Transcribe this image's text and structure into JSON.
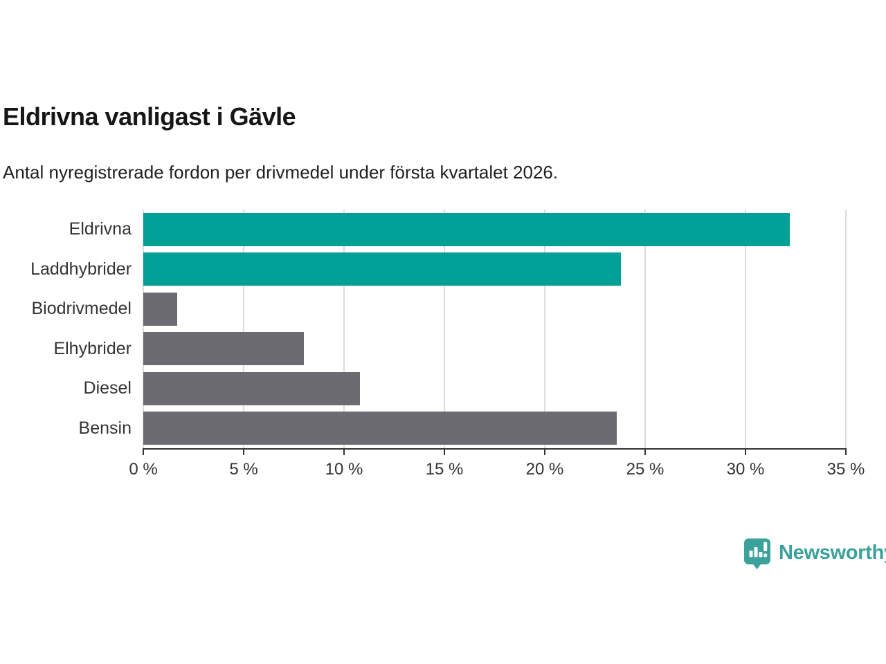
{
  "title": "Eldrivna vanligast i Gävle",
  "subtitle": "Antal nyregistrerade fordon per drivmedel under första kvartalet 2026.",
  "brand": {
    "name": "Newsworthy",
    "logo_icon": "newsworthy-speech-bubble-chart-icon",
    "color": "#3BA19B"
  },
  "colors": {
    "highlight_bar": "#00A096",
    "default_bar": "#6B6B71",
    "gridline": "#DCDCDC",
    "axis": "#333333",
    "text": "#333333"
  },
  "chart_data": {
    "type": "bar",
    "orientation": "horizontal",
    "title": "Eldrivna vanligast i Gävle",
    "subtitle": "Antal nyregistrerade fordon per drivmedel under första kvartalet 2026.",
    "categories": [
      "Eldrivna",
      "Laddhybrider",
      "Biodrivmedel",
      "Elhybrider",
      "Diesel",
      "Bensin"
    ],
    "values": [
      32.2,
      23.8,
      1.7,
      8.0,
      10.8,
      23.6
    ],
    "unit": "%",
    "bar_colors": [
      "#00A096",
      "#00A096",
      "#6B6B71",
      "#6B6B71",
      "#6B6B71",
      "#6B6B71"
    ],
    "xlabel": "",
    "ylabel": "",
    "xlim": [
      0,
      35
    ],
    "x_tick_values": [
      0,
      5,
      10,
      15,
      20,
      25,
      30,
      35
    ],
    "x_tick_labels": [
      "0 %",
      "5 %",
      "10 %",
      "15 %",
      "20 %",
      "25 %",
      "30 %",
      "35 %"
    ],
    "grid": true,
    "legend": false
  }
}
